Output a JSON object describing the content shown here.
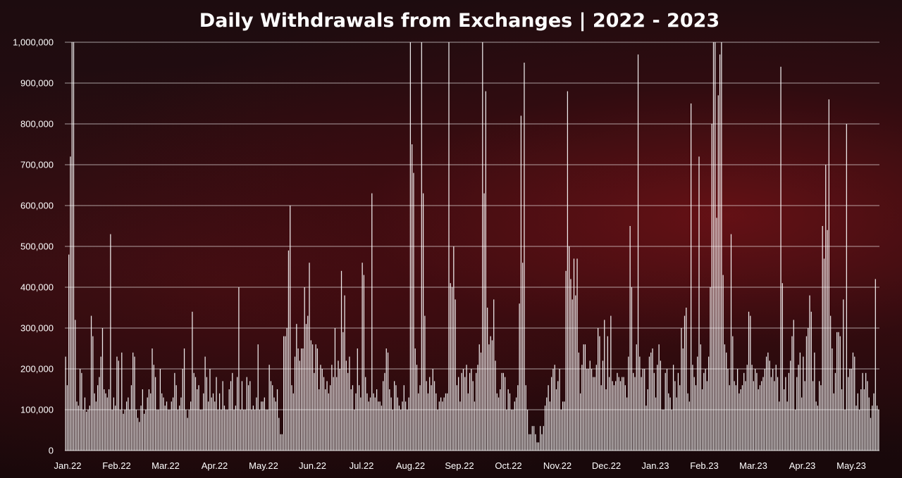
{
  "chart_data": {
    "type": "bar",
    "title": "Daily Withdrawals from Exchanges | 2022 - 2023",
    "xlabel": "",
    "ylabel": "",
    "ylim": [
      0,
      1000000
    ],
    "yticks": [
      0,
      100000,
      200000,
      300000,
      400000,
      500000,
      600000,
      700000,
      800000,
      900000,
      1000000
    ],
    "ytick_labels": [
      "0",
      "100,000",
      "200,000",
      "300,000",
      "400,000",
      "500,000",
      "600,000",
      "700,000",
      "800,000",
      "900,000",
      "1,000,000"
    ],
    "xtick_labels": [
      "Jan.22",
      "Feb.22",
      "Mar.22",
      "Apr.22",
      "May.22",
      "Jun.22",
      "Jul.22",
      "Aug.22",
      "Sep.22",
      "Oct.22",
      "Nov.22",
      "Dec.22",
      "Jan.23",
      "Feb.23",
      "Mar.23",
      "Apr.23",
      "May.23"
    ],
    "grid": true,
    "legend": "none",
    "bar_color": "#ffffff",
    "grid_color": "#ffffff",
    "values": [
      230000,
      160000,
      480000,
      720000,
      1000000,
      1000000,
      320000,
      120000,
      110000,
      200000,
      190000,
      100000,
      130000,
      95000,
      100000,
      110000,
      330000,
      280000,
      140000,
      120000,
      160000,
      180000,
      230000,
      300000,
      150000,
      140000,
      130000,
      150000,
      530000,
      100000,
      130000,
      110000,
      230000,
      220000,
      100000,
      240000,
      90000,
      100000,
      120000,
      130000,
      100000,
      160000,
      240000,
      230000,
      100000,
      80000,
      70000,
      110000,
      150000,
      90000,
      100000,
      130000,
      150000,
      140000,
      250000,
      210000,
      180000,
      100000,
      100000,
      200000,
      140000,
      130000,
      110000,
      120000,
      100000,
      100000,
      120000,
      130000,
      190000,
      160000,
      100000,
      110000,
      130000,
      200000,
      250000,
      100000,
      80000,
      100000,
      120000,
      340000,
      190000,
      180000,
      150000,
      160000,
      100000,
      100000,
      140000,
      230000,
      180000,
      120000,
      200000,
      130000,
      140000,
      120000,
      180000,
      100000,
      140000,
      100000,
      170000,
      110000,
      100000,
      100000,
      150000,
      170000,
      190000,
      100000,
      110000,
      180000,
      400000,
      100000,
      170000,
      100000,
      100000,
      180000,
      160000,
      170000,
      100000,
      110000,
      100000,
      130000,
      260000,
      100000,
      120000,
      120000,
      130000,
      100000,
      100000,
      210000,
      170000,
      160000,
      130000,
      120000,
      150000,
      80000,
      40000,
      40000,
      280000,
      280000,
      300000,
      490000,
      600000,
      160000,
      140000,
      230000,
      310000,
      250000,
      220000,
      250000,
      250000,
      400000,
      310000,
      330000,
      460000,
      270000,
      260000,
      190000,
      260000,
      250000,
      150000,
      210000,
      200000,
      180000,
      150000,
      170000,
      140000,
      160000,
      210000,
      180000,
      300000,
      180000,
      220000,
      200000,
      440000,
      290000,
      380000,
      220000,
      190000,
      230000,
      150000,
      160000,
      100000,
      140000,
      250000,
      160000,
      130000,
      460000,
      430000,
      180000,
      140000,
      120000,
      130000,
      630000,
      140000,
      130000,
      150000,
      120000,
      120000,
      110000,
      170000,
      190000,
      250000,
      240000,
      150000,
      130000,
      100000,
      170000,
      160000,
      130000,
      110000,
      100000,
      120000,
      160000,
      120000,
      100000,
      130000,
      1000000,
      750000,
      680000,
      250000,
      210000,
      140000,
      160000,
      1000000,
      630000,
      330000,
      170000,
      140000,
      180000,
      160000,
      200000,
      170000,
      140000,
      100000,
      120000,
      130000,
      120000,
      130000,
      140000,
      140000,
      1000000,
      410000,
      400000,
      500000,
      370000,
      160000,
      180000,
      120000,
      190000,
      200000,
      180000,
      210000,
      140000,
      190000,
      200000,
      170000,
      120000,
      190000,
      210000,
      260000,
      240000,
      1000000,
      630000,
      880000,
      350000,
      260000,
      280000,
      270000,
      370000,
      220000,
      140000,
      130000,
      150000,
      190000,
      190000,
      180000,
      100000,
      150000,
      140000,
      100000,
      100000,
      120000,
      130000,
      160000,
      360000,
      820000,
      460000,
      950000,
      160000,
      100000,
      40000,
      40000,
      60000,
      60000,
      40000,
      20000,
      20000,
      60000,
      40000,
      60000,
      110000,
      130000,
      160000,
      120000,
      180000,
      200000,
      210000,
      150000,
      170000,
      200000,
      100000,
      120000,
      120000,
      440000,
      880000,
      500000,
      420000,
      370000,
      470000,
      380000,
      470000,
      240000,
      140000,
      210000,
      260000,
      260000,
      200000,
      200000,
      220000,
      200000,
      180000,
      180000,
      210000,
      300000,
      280000,
      160000,
      220000,
      320000,
      150000,
      280000,
      180000,
      330000,
      170000,
      160000,
      170000,
      190000,
      180000,
      170000,
      180000,
      180000,
      160000,
      130000,
      230000,
      550000,
      400000,
      190000,
      180000,
      260000,
      970000,
      230000,
      180000,
      200000,
      200000,
      110000,
      150000,
      230000,
      240000,
      250000,
      190000,
      130000,
      210000,
      260000,
      220000,
      100000,
      100000,
      190000,
      200000,
      140000,
      130000,
      100000,
      210000,
      170000,
      130000,
      190000,
      160000,
      300000,
      250000,
      330000,
      350000,
      140000,
      120000,
      850000,
      210000,
      180000,
      160000,
      230000,
      720000,
      260000,
      150000,
      190000,
      200000,
      170000,
      230000,
      400000,
      800000,
      1000000,
      1000000,
      570000,
      870000,
      970000,
      1000000,
      430000,
      260000,
      240000,
      200000,
      160000,
      530000,
      280000,
      170000,
      160000,
      200000,
      140000,
      150000,
      160000,
      190000,
      170000,
      210000,
      340000,
      330000,
      210000,
      170000,
      200000,
      190000,
      150000,
      160000,
      170000,
      180000,
      200000,
      230000,
      240000,
      220000,
      180000,
      200000,
      170000,
      210000,
      180000,
      120000,
      940000,
      410000,
      150000,
      180000,
      120000,
      190000,
      220000,
      280000,
      320000,
      100000,
      180000,
      210000,
      240000,
      130000,
      230000,
      170000,
      280000,
      300000,
      380000,
      340000,
      170000,
      240000,
      120000,
      110000,
      170000,
      160000,
      550000,
      470000,
      700000,
      540000,
      860000,
      330000,
      250000,
      140000,
      190000,
      290000,
      290000,
      280000,
      150000,
      370000,
      100000,
      800000,
      180000,
      200000,
      200000,
      240000,
      230000,
      110000,
      140000,
      100000,
      150000,
      190000,
      150000,
      190000,
      170000,
      130000,
      80000,
      110000,
      140000,
      420000,
      110000,
      100000
    ],
    "x_positions_label": "daily bars, Jan 2022 to May 2023"
  }
}
